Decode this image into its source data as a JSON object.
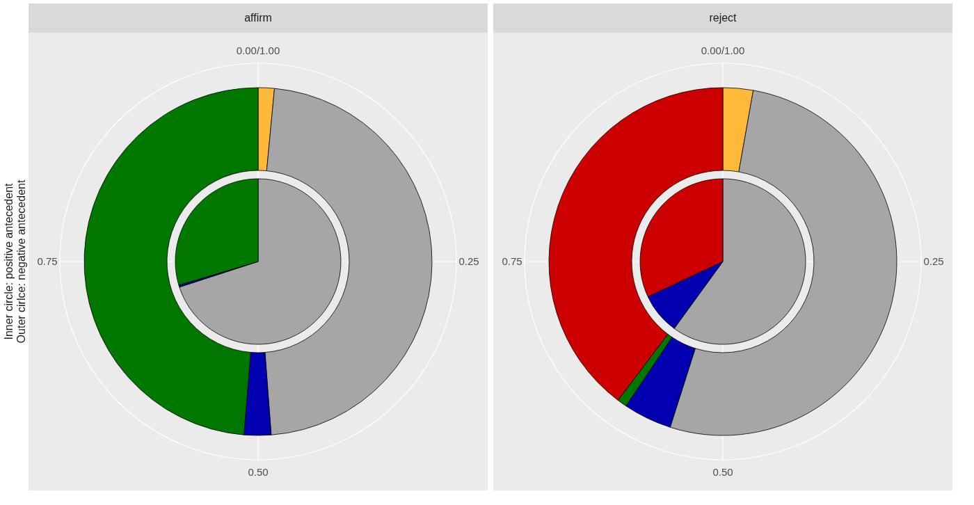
{
  "chart_data": [
    {
      "type": "donut",
      "title": "affirm",
      "ylabel": "Inner circle: positive antecedent\nOuter cirlce: negative antecedent",
      "annotations": [
        "0.00/1.00",
        "0.25",
        "0.50",
        "0.75"
      ],
      "grid": true,
      "series": [
        {
          "type": "pie",
          "values": [
            70,
            0.4,
            29.6
          ],
          "colors": [
            "#a6a6a6",
            "#0000b0",
            "#007800"
          ]
        },
        {
          "type": "donut",
          "values": [
            1.5,
            47.3,
            2.5,
            48.7
          ],
          "colors": [
            "#ffb938",
            "#a6a6a6",
            "#0000b0",
            "#007800"
          ]
        }
      ]
    },
    {
      "type": "donut",
      "title": "reject",
      "annotations": [
        "0.00/1.00",
        "0.25",
        "0.50",
        "0.75"
      ],
      "grid": true,
      "series": [
        {
          "type": "pie",
          "values": [
            60,
            8,
            32
          ],
          "colors": [
            "#a6a6a6",
            "#0000b0",
            "#cc0000"
          ]
        },
        {
          "type": "donut",
          "values": [
            2.8,
            52.1,
            4.5,
            0.9,
            39.7
          ],
          "colors": [
            "#ffb938",
            "#a6a6a6",
            "#0000b0",
            "#007800",
            "#cc0000"
          ]
        }
      ]
    }
  ]
}
